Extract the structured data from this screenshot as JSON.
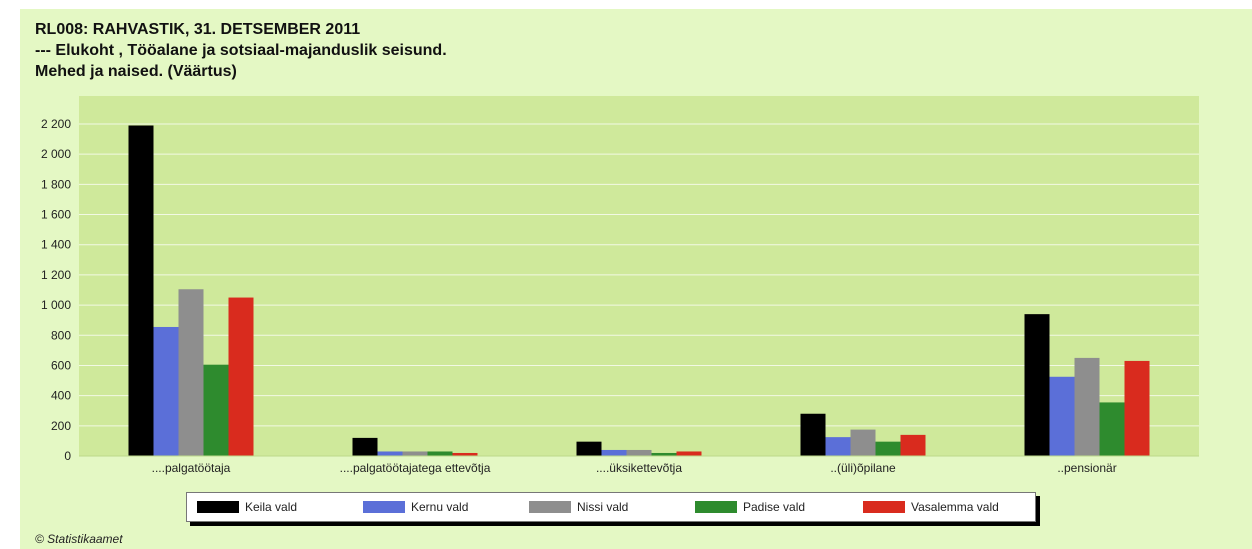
{
  "title": {
    "line1": "RL008: RAHVASTIK, 31. DETSEMBER 2011",
    "line2": "--- Elukoht , Tööalane ja sotsiaal-majanduslik seisund.",
    "line3": "Mehed ja naised. (Väärtus)"
  },
  "footer": "© Statistikaamet",
  "colors": {
    "frame_bg": "#e4f8c4",
    "plot_bg": "#cfe99b",
    "gridline": "#f2f9e4"
  },
  "chart_data": {
    "type": "bar",
    "categories": [
      "....palgatöötaja",
      "....palgatöötajatega ettevõtja",
      "....üksikettevõtja",
      "..(üli)õpilane",
      "..pensionär"
    ],
    "series": [
      {
        "name": "Keila vald",
        "color": "#000000",
        "values": [
          2190,
          120,
          95,
          280,
          940
        ]
      },
      {
        "name": "Kernu vald",
        "color": "#5b6fd8",
        "values": [
          855,
          30,
          40,
          125,
          525
        ]
      },
      {
        "name": "Nissi vald",
        "color": "#8e8e8e",
        "values": [
          1105,
          30,
          40,
          175,
          650
        ]
      },
      {
        "name": "Padise vald",
        "color": "#2e8b2e",
        "values": [
          605,
          30,
          20,
          95,
          355
        ]
      },
      {
        "name": "Vasalemma vald",
        "color": "#d92b1e",
        "values": [
          1050,
          20,
          30,
          140,
          630
        ]
      }
    ],
    "y_ticks": [
      "0",
      "200",
      "400",
      "600",
      "800",
      "1 000",
      "1 200",
      "1 400",
      "1 600",
      "1 800",
      "2 000",
      "2 200"
    ],
    "ylim": [
      0,
      2200
    ],
    "grid": true,
    "legend_position": "bottom"
  }
}
